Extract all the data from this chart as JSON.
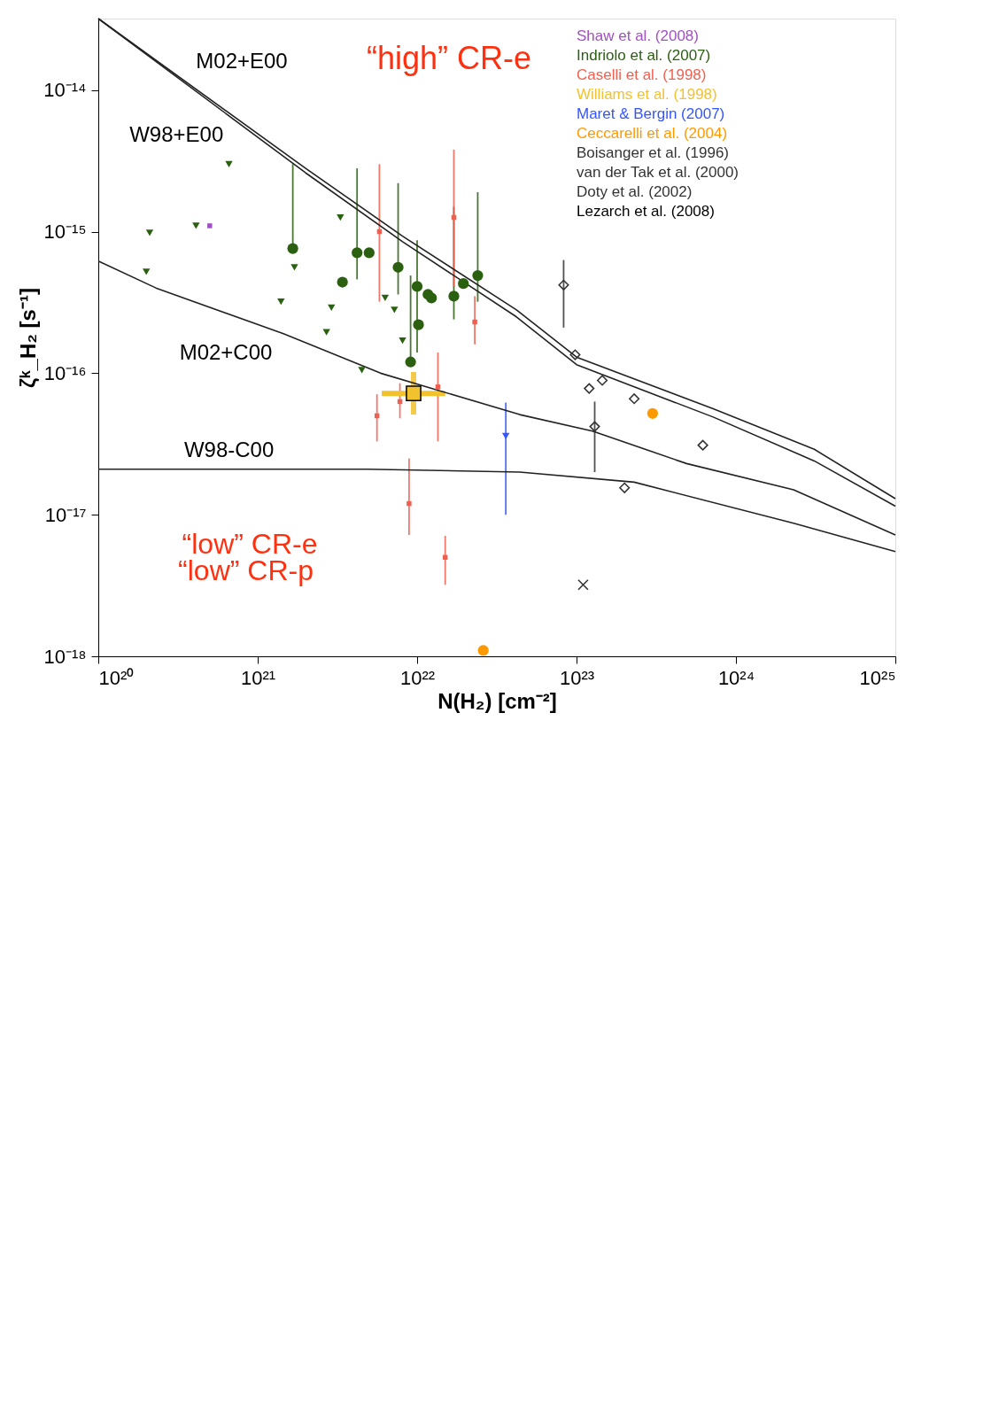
{
  "chart_data": {
    "type": "scatter",
    "xlabel": "N(H₂) [cm⁻²]",
    "ylabel": "ζᵏ_H₂ [s⁻¹]",
    "log": "xy",
    "xlim": [
      1e+20,
      1e+25
    ],
    "ylim": [
      1e-18,
      3.2e-14
    ],
    "xticks": [
      {
        "value": 1e+20,
        "label": "10²⁰"
      },
      {
        "value": 1e+21,
        "label": "10²¹"
      },
      {
        "value": 1e+22,
        "label": "10²²"
      },
      {
        "value": 1e+23,
        "label": "10²³"
      },
      {
        "value": 1e+24,
        "label": "10²⁴"
      },
      {
        "value": 1e+25,
        "label": "10²⁵"
      }
    ],
    "yticks": [
      {
        "value": 1e-18,
        "label": "10⁻¹⁸"
      },
      {
        "value": 1e-17,
        "label": "10⁻¹⁷"
      },
      {
        "value": 1e-16,
        "label": "10⁻¹⁶"
      },
      {
        "value": 1e-15,
        "label": "10⁻¹⁵"
      },
      {
        "value": 1e-14,
        "label": "10⁻¹⁴"
      }
    ],
    "legend": "top right",
    "series": [
      {
        "name": "Shaw et al. (2008)",
        "color": "#a050c0",
        "marker": "square",
        "x": [
          5e+20
        ],
        "values": [
          1.1e-15
        ]
      },
      {
        "name": "Indriolo et al. (2007)",
        "color": "#2a6010",
        "marker": "circle",
        "x": [
          2.4e+22,
          1.95e+22,
          1.7e+22,
          1.23e+22,
          1.17e+22,
          1e+22,
          1.02e+22,
          9.1e+21,
          7.6e+21,
          5e+21,
          4.2e+21,
          3.4e+21,
          1.66e+21
        ],
        "values": [
          4.9e-16,
          4.3e-16,
          3.5e-16,
          3.4e-16,
          3.6e-16,
          4.1e-16,
          2.2e-16,
          1.2e-16,
          5.6e-16,
          7.1e-16,
          7.1e-16,
          4.4e-16,
          7.6e-16
        ],
        "errors": [
          [
            3.2e-16,
            1.9e-15
          ],
          null,
          [
            2.4e-16,
            1.5e-15
          ],
          null,
          null,
          [
            1.4e-16,
            8.7e-16
          ],
          null,
          [
            1.2e-16,
            4.9e-16
          ],
          [
            3.6e-16,
            2.2e-15
          ],
          null,
          [
            4.6e-16,
            2.8e-15
          ],
          null,
          [
            7.6e-16,
            3e-15
          ]
        ]
      },
      {
        "color": "#2a6010",
        "marker": "triangle",
        "x": [
          8.1e+21,
          7.2e+21,
          6.3e+21,
          3.3e+21,
          2.9e+21,
          2.7e+21,
          4.5e+21,
          1.7e+21,
          1.4e+21,
          6.6e+20,
          4.1e+20,
          2.1e+20,
          2e+20
        ],
        "values": [
          1.7e-16,
          2.8e-16,
          3.4e-16,
          1.26e-15,
          2.9e-16,
          1.95e-16,
          1.05e-16,
          5.6e-16,
          3.2e-16,
          3e-15,
          1.1e-15,
          9.8e-16,
          5.2e-16
        ]
      },
      {
        "name": "Caselli et al. (1998)",
        "color": "#f06050",
        "marker": "square",
        "x": [
          2.3e+22,
          1.7e+22,
          5.8e+21,
          1.35e+22,
          7.8e+21,
          5.6e+21,
          8.9e+21,
          1.5e+22
        ],
        "values": [
          2.3e-16,
          1.26e-15,
          1e-15,
          8e-17,
          6.3e-17,
          5e-17,
          1.2e-17,
          5e-18
        ],
        "errors": [
          [
            1.6e-16,
            3.5e-16
          ],
          [
            4.1e-16,
            3.8e-15
          ],
          [
            3.2e-16,
            3e-15
          ],
          [
            3.3e-17,
            1.4e-16
          ],
          [
            4.8e-17,
            8.5e-17
          ],
          [
            3.3e-17,
            7.1e-17
          ],
          [
            7.2e-18,
            2.5e-17
          ],
          [
            3.2e-18,
            7.1e-18
          ]
        ]
      },
      {
        "name": "Williams et al. (1998)",
        "color": "#f2c12e",
        "marker": "square",
        "x": [
          9.5e+21
        ],
        "values": [
          7.2e-17
        ],
        "xerrors": [
          [
            6e+21,
            1.5e+22
          ]
        ],
        "errors": [
          [
            5.1e-17,
            1.02e-16
          ]
        ]
      },
      {
        "name": "Maret & Bergin (2007)",
        "color": "#3355ff",
        "marker": "triangle",
        "x": [
          3.6e+22
        ],
        "values": [
          3.6e-17
        ],
        "errors": [
          [
            1e-17,
            6.2e-17
          ]
        ]
      },
      {
        "name": "Ceccarelli et al. (2004)",
        "color": "#ff9900",
        "marker": "circle",
        "x": [
          3e+23,
          2.6e+22
        ],
        "values": [
          5.2e-17,
          1.1e-18
        ]
      },
      {
        "name": "Boisanger et al. (1996)",
        "color": "#333333",
        "marker": "diamond",
        "x": [
          8.3e+22
        ],
        "values": [
          4.2e-16
        ],
        "errors": [
          [
            2.1e-16,
            6.3e-16
          ]
        ]
      },
      {
        "name": "van der Tak et al. (2000)",
        "color": "#333333",
        "marker": "diamond",
        "x": [
          9.8e+22,
          1.45e+23,
          1.2e+23,
          2.3e+23,
          1.3e+23,
          2e+23,
          6.2e+23
        ],
        "values": [
          1.35e-16,
          8.9e-17,
          7.8e-17,
          6.6e-17,
          4.2e-17,
          1.55e-17,
          3.1e-17
        ],
        "errors": [
          null,
          null,
          null,
          null,
          [
            2e-17,
            6.3e-17
          ],
          null,
          null
        ]
      },
      {
        "name": "Doty et al. (2002)",
        "color": "#333333",
        "marker": "cross",
        "x": [
          1.1e+23
        ],
        "values": [
          3.2e-18
        ]
      },
      {
        "color": "#222222",
        "type": "line",
        "line_style": "solid",
        "marker": "none",
        "x": [
          1e+20,
          2e+21,
          8.1e+21,
          4.2e+22,
          1e+23,
          7.2e+23,
          3.1e+24,
          1e+25
        ],
        "values": [
          3.2e-14,
          2.8e-15,
          9.3e-16,
          2.8e-16,
          1.3e-16,
          5.6e-17,
          2.9e-17,
          1.3e-17
        ]
      },
      {
        "color": "#222222",
        "type": "line",
        "line_style": "solid",
        "marker": "none",
        "x": [
          1e+20,
          2e+21,
          8.1e+21,
          4.2e+22,
          1e+23,
          7.2e+23,
          3.1e+24,
          1e+25
        ],
        "values": [
          3.2e-14,
          2.6e-15,
          8.5e-16,
          2.5e-16,
          1.15e-16,
          4.9e-17,
          2.4e-17,
          1.15e-17
        ]
      },
      {
        "color": "#222222",
        "type": "line",
        "line_style": "solid",
        "marker": "none",
        "x": [
          1e+20,
          2.3e+20,
          1.45e+21,
          5.9e+21,
          4.4e+22,
          1.26e+23,
          4.9e+23,
          2.3e+24,
          1e+25
        ],
        "values": [
          6.2e-16,
          4e-16,
          1.9e-16,
          1e-16,
          5.1e-17,
          3.9e-17,
          2.3e-17,
          1.5e-17,
          7.2e-18
        ]
      },
      {
        "color": "#222222",
        "type": "line",
        "line_style": "solid",
        "marker": "none",
        "x": [
          1e+20,
          4.9e+21,
          4.4e+22,
          2.3e+23,
          2.3e+24,
          1e+25
        ],
        "values": [
          2.1e-17,
          2.1e-17,
          2e-17,
          1.7e-17,
          8.7e-18,
          5.5e-18
        ]
      }
    ],
    "annotations": [
      "M02+E00",
      "W98+E00",
      "M02+C00",
      "W98-C00",
      "“high” CR-e",
      "“low” CR-e",
      "“low” CR-p",
      "Lezarch et al. (2008)"
    ]
  }
}
